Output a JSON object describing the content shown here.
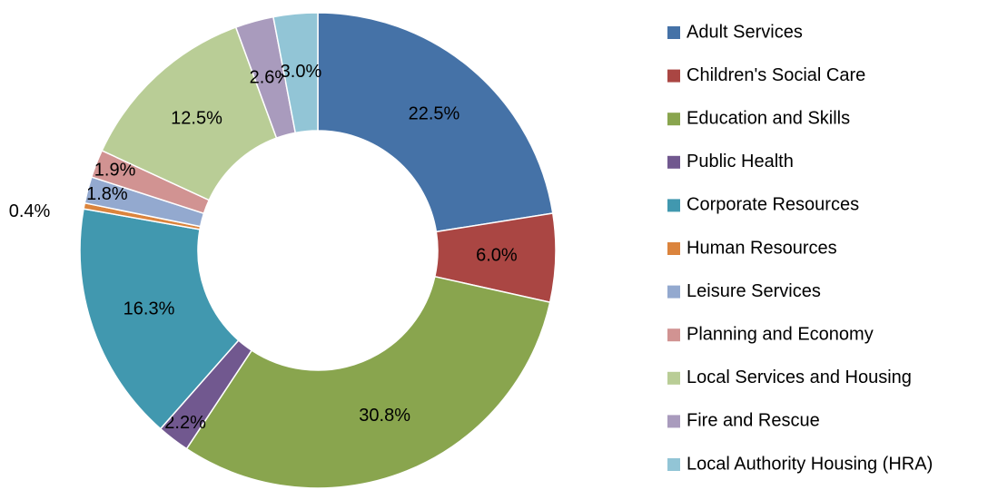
{
  "chart_data": {
    "type": "donut",
    "categories": [
      "Adult Services",
      "Children's Social Care",
      "Education and Skills",
      "Public Health",
      "Corporate Resources",
      "Human Resources",
      "Leisure Services",
      "Planning and Economy",
      "Local Services and Housing",
      "Fire and Rescue",
      "Local Authority Housing (HRA)"
    ],
    "values": [
      22.5,
      6.0,
      30.8,
      2.2,
      16.3,
      0.4,
      1.8,
      1.9,
      12.5,
      2.6,
      3.0
    ],
    "value_labels": [
      "22.5%",
      "6.0%",
      "30.8%",
      "2.2%",
      "16.3%",
      "0.4%",
      "1.8%",
      "1.9%",
      "12.5%",
      "2.6%",
      "3.0%"
    ],
    "colors": [
      "#4572a7",
      "#aa4643",
      "#89a54e",
      "#71588f",
      "#4198af",
      "#db843d",
      "#93a9cf",
      "#d19392",
      "#b9cd96",
      "#a99bbd",
      "#92c5d6"
    ],
    "legend": "right"
  }
}
